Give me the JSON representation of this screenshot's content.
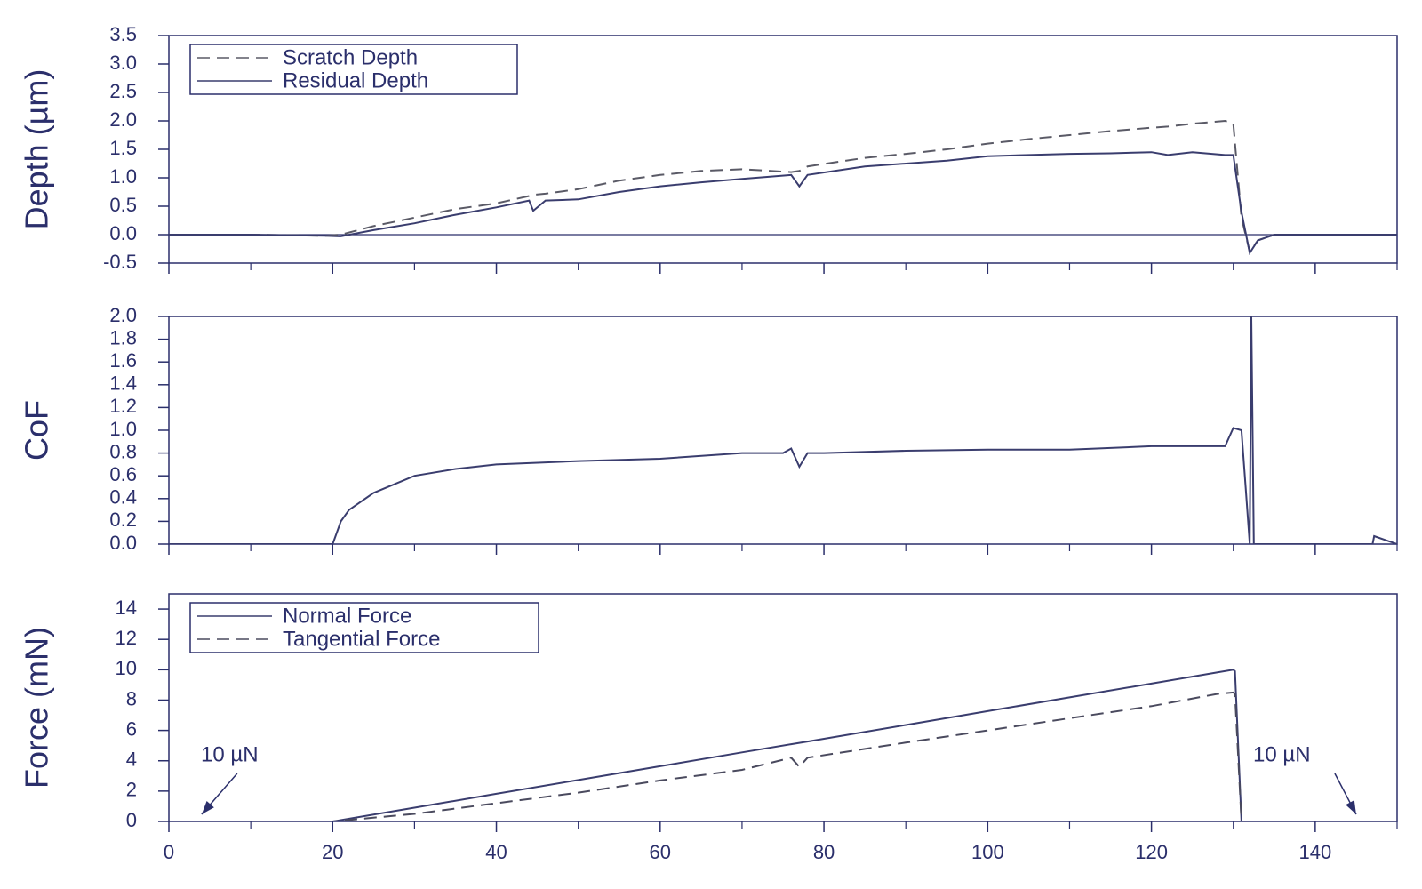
{
  "chart_data": [
    {
      "type": "line",
      "ylabel": "Depth (µm)",
      "legend": "upper left",
      "xlim": [
        0,
        150
      ],
      "xticks": [
        0,
        20,
        40,
        60,
        80,
        100,
        120,
        140
      ],
      "xminor_ticks": [
        10,
        30,
        50,
        70,
        90,
        110,
        130,
        150
      ],
      "ylim": [
        -0.5,
        3.5
      ],
      "yticks": [
        -0.5,
        {
          "value": 0,
          "label": "0.0"
        },
        0.5,
        {
          "value": 1,
          "label": "1.0"
        },
        1.5,
        {
          "value": 2,
          "label": "2.0"
        },
        2.5,
        {
          "value": 3,
          "label": "3.0"
        },
        3.5
      ],
      "x": [
        0,
        10,
        19,
        21,
        25,
        30,
        35,
        40,
        44,
        44.5,
        46,
        50,
        55,
        60,
        65,
        70,
        76,
        77,
        78,
        85,
        90,
        95,
        100,
        105,
        110,
        115,
        120,
        122,
        125,
        129,
        130,
        131,
        132,
        133,
        135,
        140,
        150
      ],
      "series": [
        {
          "name": "Scratch Depth",
          "color": "#5a5a66",
          "dash": "dashed",
          "values": [
            0,
            0,
            -0.02,
            0,
            0.15,
            0.3,
            0.45,
            0.55,
            0.68,
            0.7,
            0.72,
            0.8,
            0.95,
            1.05,
            1.12,
            1.15,
            1.1,
            1.12,
            1.2,
            1.35,
            1.42,
            1.5,
            1.6,
            1.68,
            1.75,
            1.82,
            1.88,
            1.9,
            1.95,
            2.0,
            1.95,
            0.3,
            -0.3,
            -0.1,
            0,
            0,
            0
          ]
        },
        {
          "name": "Residual Depth",
          "color": "#3a3d6e",
          "dash": "solid",
          "values": [
            0,
            0,
            -0.02,
            -0.03,
            0.08,
            0.2,
            0.35,
            0.48,
            0.6,
            0.42,
            0.6,
            0.62,
            0.75,
            0.85,
            0.92,
            0.98,
            1.05,
            0.85,
            1.05,
            1.2,
            1.25,
            1.3,
            1.38,
            1.4,
            1.42,
            1.43,
            1.45,
            1.4,
            1.45,
            1.4,
            1.4,
            0.4,
            -0.32,
            -0.1,
            0,
            0,
            0
          ]
        }
      ]
    },
    {
      "type": "line",
      "ylabel": "CoF",
      "color": "#3a3d6e",
      "xlim": [
        0,
        150
      ],
      "xticks": [
        0,
        20,
        40,
        60,
        80,
        100,
        120,
        140
      ],
      "xminor_ticks": [
        10,
        30,
        50,
        70,
        90,
        110,
        130,
        150
      ],
      "ylim": [
        0,
        2
      ],
      "yticks": [
        {
          "value": 0,
          "label": "0.0"
        },
        0.2,
        0.4,
        0.6,
        0.8,
        {
          "value": 1,
          "label": "1.0"
        },
        1.2,
        1.4,
        1.6,
        1.8,
        {
          "value": 2,
          "label": "2.0"
        }
      ],
      "x": [
        0,
        19,
        19.5,
        20,
        21,
        22,
        25,
        30,
        35,
        40,
        50,
        60,
        70,
        75,
        76,
        77,
        78,
        80,
        90,
        100,
        110,
        120,
        129,
        130,
        131,
        131.5,
        132,
        132.2,
        132.5,
        133,
        140,
        142,
        147,
        147.2,
        150
      ],
      "values": [
        0,
        0,
        0,
        0,
        0.2,
        0.3,
        0.45,
        0.6,
        0.66,
        0.7,
        0.73,
        0.75,
        0.8,
        0.8,
        0.84,
        0.68,
        0.8,
        0.8,
        0.82,
        0.83,
        0.83,
        0.86,
        0.86,
        1.02,
        1.0,
        0.5,
        0,
        2.0,
        0,
        0,
        0,
        0,
        0,
        0.07,
        0
      ]
    },
    {
      "type": "line",
      "ylabel": "Force (mN)",
      "legend": "upper left",
      "xlim": [
        0,
        150
      ],
      "xticks": [
        0,
        20,
        40,
        60,
        80,
        100,
        120,
        140
      ],
      "xminor_ticks": [
        10,
        30,
        50,
        70,
        90,
        110,
        130,
        150
      ],
      "ylim": [
        0,
        15
      ],
      "yticks": [
        0,
        2,
        4,
        6,
        8,
        10,
        12,
        14
      ],
      "x": [
        0,
        20,
        30,
        40,
        50,
        60,
        70,
        76,
        77,
        78,
        90,
        100,
        110,
        120,
        128,
        130,
        130.2,
        131,
        150
      ],
      "series": [
        {
          "name": "Normal Force",
          "color": "#3a3d6e",
          "dash": "solid",
          "values": [
            0,
            0,
            0.91,
            1.82,
            2.73,
            3.64,
            4.55,
            5.09,
            5.18,
            5.27,
            6.36,
            7.27,
            8.18,
            9.09,
            9.82,
            10,
            9.9,
            0,
            0
          ]
        },
        {
          "name": "Tangential Force",
          "color": "#4a4a5e",
          "dash": "dashed",
          "values": [
            0,
            0,
            0.5,
            1.2,
            1.9,
            2.7,
            3.4,
            4.2,
            3.6,
            4.2,
            5.2,
            6.0,
            6.8,
            7.6,
            8.4,
            8.5,
            8.4,
            0,
            0
          ]
        }
      ],
      "annotations": [
        "10 µN",
        "10 µN"
      ]
    }
  ]
}
